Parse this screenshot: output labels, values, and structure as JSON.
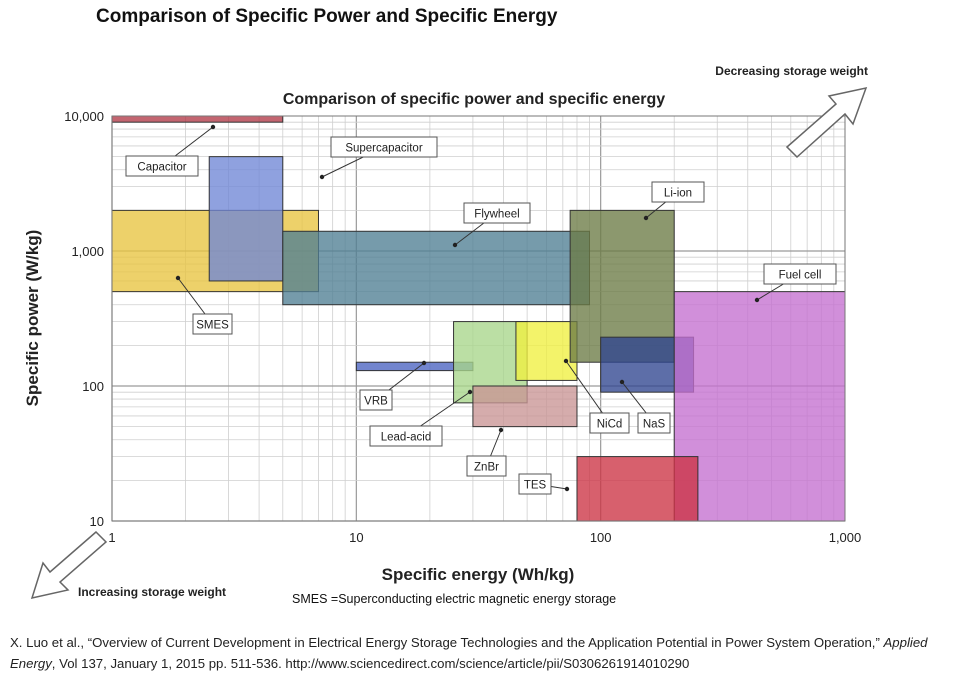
{
  "page_title": "Comparison of Specific Power and Specific Energy",
  "footnote": "SMES =Superconducting electric magnetic energy storage",
  "citation": {
    "authors": "X. Luo et al., “Overview of Current Development in Electrical Energy Storage Technologies and the Application Potential in Power System Operation,” ",
    "journal": "Applied Energy",
    "rest": ", Vol 137, January 1, 2015 pp. 511-536. http://www.sciencedirect.com/science/article/pii/S0306261914010290"
  },
  "chart_data": {
    "type": "area",
    "title": "Comparison of specific power and specific energy",
    "xlabel": "Specific energy (Wh/kg)",
    "ylabel": "Specific power (W/kg)",
    "x_scale": "log",
    "y_scale": "log",
    "xlim": [
      1,
      1000
    ],
    "ylim": [
      10,
      10000
    ],
    "x_ticks": [
      {
        "value": 1,
        "label": "1"
      },
      {
        "value": 10,
        "label": "10"
      },
      {
        "value": 100,
        "label": "100"
      },
      {
        "value": 1000,
        "label": "1,000"
      }
    ],
    "y_ticks": [
      {
        "value": 10,
        "label": "10"
      },
      {
        "value": 100,
        "label": "100"
      },
      {
        "value": 1000,
        "label": "1,000"
      },
      {
        "value": 10000,
        "label": "10,000"
      }
    ],
    "grid": true,
    "annotations": {
      "top_right": "Decreasing storage weight",
      "bottom_left": "Increasing storage weight"
    },
    "regions": [
      {
        "name": "Capacitor",
        "energy": [
          1,
          5
        ],
        "power": [
          9000,
          10000
        ],
        "color": "#b23a48"
      },
      {
        "name": "SMES",
        "energy": [
          1,
          7
        ],
        "power": [
          500,
          2000
        ],
        "color": "#e8c440"
      },
      {
        "name": "Supercapacitor",
        "energy": [
          2.5,
          5
        ],
        "power": [
          600,
          5000
        ],
        "color": "#6f86d6"
      },
      {
        "name": "Flywheel",
        "energy": [
          5,
          90
        ],
        "power": [
          400,
          1400
        ],
        "color": "#4f7f94"
      },
      {
        "name": "VRB",
        "energy": [
          10,
          30
        ],
        "power": [
          130,
          150
        ],
        "color": "#4a63c0"
      },
      {
        "name": "Lead-acid",
        "energy": [
          25,
          50
        ],
        "power": [
          75,
          300
        ],
        "color": "#a8d68a"
      },
      {
        "name": "ZnBr",
        "energy": [
          30,
          80
        ],
        "power": [
          50,
          100
        ],
        "color": "#c99595"
      },
      {
        "name": "NiCd",
        "energy": [
          45,
          80
        ],
        "power": [
          110,
          300
        ],
        "color": "#f0f040"
      },
      {
        "name": "Li-ion",
        "energy": [
          75,
          200
        ],
        "power": [
          150,
          2000
        ],
        "color": "#6c7b45"
      },
      {
        "name": "NaS",
        "energy": [
          100,
          240
        ],
        "power": [
          90,
          230
        ],
        "color": "#2f4590"
      },
      {
        "name": "Fuel cell",
        "energy": [
          200,
          1000
        ],
        "power": [
          10,
          500
        ],
        "color": "#c470cf"
      },
      {
        "name": "TES",
        "energy": [
          80,
          250
        ],
        "power": [
          10,
          30
        ],
        "color": "#cc3344"
      }
    ]
  }
}
